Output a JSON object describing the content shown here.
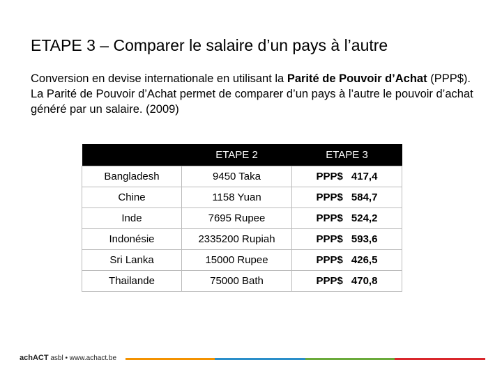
{
  "title": "ETAPE 3 – Comparer le salaire d’un pays à l’autre",
  "body": {
    "text_before": "Conversion en devise internationale en utilisant la ",
    "bold": "Parité de Pouvoir d’Achat",
    "text_after": " (PPP$).  La Parité de Pouvoir d’Achat permet de comparer d’un pays à l’autre le pouvoir d’achat généré par un salaire. (2009)"
  },
  "table": {
    "header": [
      "ETAPE 2",
      "ETAPE 3"
    ],
    "rows": [
      [
        "Bangladesh",
        "9450 Taka",
        "PPP$",
        "417,4"
      ],
      [
        "Chine",
        "1158 Yuan",
        "PPP$",
        "584,7"
      ],
      [
        "Inde",
        "7695 Rupee",
        "PPP$",
        "524,2"
      ],
      [
        "Indonésie",
        "2335200 Rupiah",
        "PPP$",
        "593,6"
      ],
      [
        "Sri Lanka",
        "15000 Rupee",
        "PPP$",
        "426,5"
      ],
      [
        "Thailande",
        "75000 Bath",
        "PPP$",
        "470,8"
      ]
    ]
  },
  "footer": {
    "brand": "achACT",
    "text": "asbl • www.achact.be"
  }
}
